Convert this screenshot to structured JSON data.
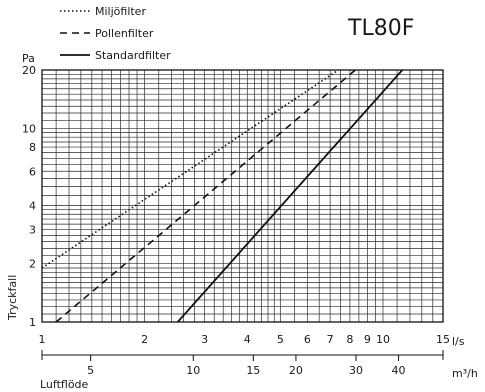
{
  "chart_data": {
    "type": "line",
    "title": "TL80F",
    "xlabel": "Luftflöde",
    "ylabel": "Tryckfall",
    "y_unit": "Pa",
    "x_unit": "l/s",
    "x2_unit": "m³/h",
    "x_scale": "log",
    "y_scale": "log",
    "xlim": [
      1,
      15
    ],
    "ylim": [
      1,
      20
    ],
    "grid": true,
    "legend_position": "top-left",
    "x_ticks": [
      1,
      2,
      3,
      4,
      5,
      6,
      7,
      8,
      9,
      10,
      15
    ],
    "x_tick_labels": [
      "1",
      "2",
      "3",
      "4",
      "5",
      "6",
      "7",
      "8",
      "9",
      "10",
      "15"
    ],
    "y_ticks": [
      1,
      2,
      3,
      4,
      6,
      8,
      10,
      20
    ],
    "y_tick_labels": [
      "1",
      "2",
      "3",
      "4",
      "6",
      "8",
      "10",
      "20"
    ],
    "x2_ticks": [
      5,
      10,
      15,
      20,
      30,
      40
    ],
    "x2_tick_labels": [
      "5",
      "10",
      "15",
      "20",
      "30",
      "40"
    ],
    "series": [
      {
        "name": "Miljöfilter",
        "style": "dotted",
        "x": [
          1.0,
          7.4
        ],
        "y": [
          1.9,
          20
        ]
      },
      {
        "name": "Pollenfilter",
        "style": "dashed",
        "x": [
          1.1,
          8.3
        ],
        "y": [
          1.0,
          20
        ]
      },
      {
        "name": "Standardfilter",
        "style": "solid",
        "x": [
          2.5,
          11.4
        ],
        "y": [
          1.0,
          20
        ]
      }
    ]
  }
}
